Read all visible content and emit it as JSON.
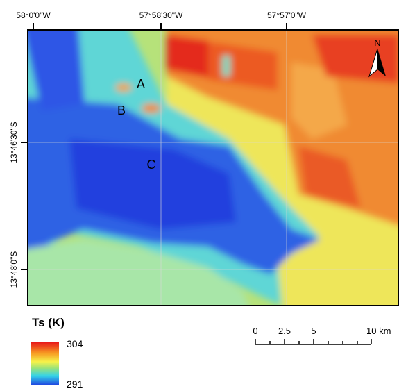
{
  "map": {
    "top_labels": [
      "58°0'0\"W",
      "57°58'30\"W",
      "57°57'0\"W"
    ],
    "left_labels": [
      "13°46'30\"S",
      "13°48'0\"S"
    ],
    "sites": [
      "A",
      "B",
      "C"
    ],
    "north": "N"
  },
  "legend": {
    "title": "Ts (K)",
    "max": 304,
    "min": 291
  },
  "scale_bar": {
    "labels": [
      "0",
      "2.5",
      "5",
      "10 km"
    ]
  }
}
